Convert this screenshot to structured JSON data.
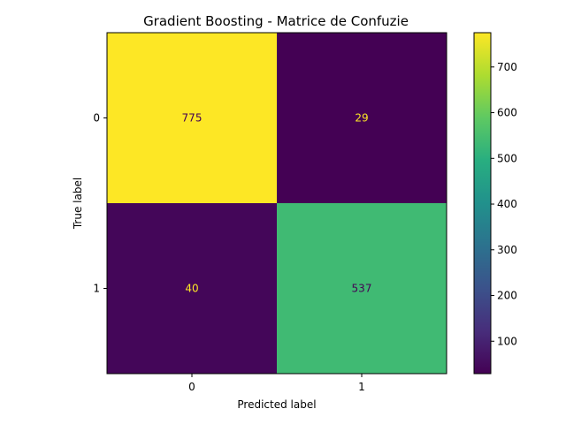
{
  "chart_data": {
    "type": "heatmap",
    "title": "Gradient Boosting - Matrice de Confuzie",
    "xlabel": "Predicted label",
    "ylabel": "True label",
    "x_categories": [
      "0",
      "1"
    ],
    "y_categories": [
      "0",
      "1"
    ],
    "values": [
      [
        775,
        29
      ],
      [
        40,
        537
      ]
    ],
    "colormap": "viridis",
    "colorbar": {
      "range": [
        29,
        775
      ],
      "ticks": [
        100,
        200,
        300,
        400,
        500,
        600,
        700
      ],
      "tick_labels": [
        "100",
        "200",
        "300",
        "400",
        "500",
        "600",
        "700"
      ]
    },
    "text_colors": {
      "on_dark": "#fde725",
      "on_light": "#440154"
    }
  }
}
